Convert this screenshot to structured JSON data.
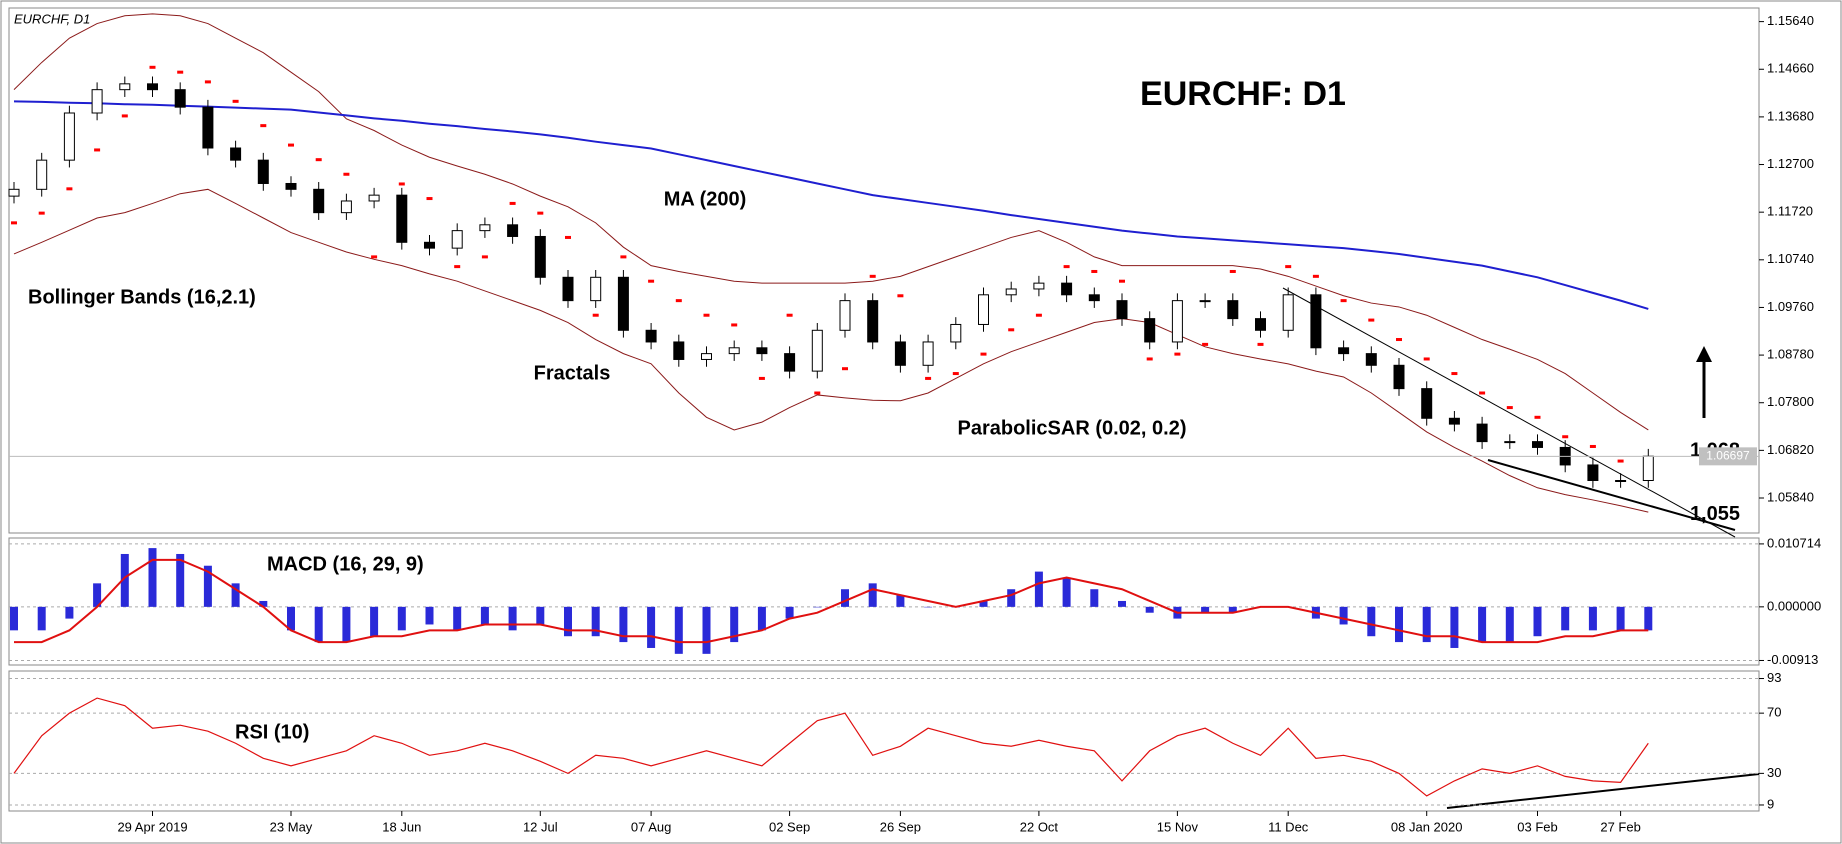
{
  "chart_data": [
    {
      "type": "candlestick",
      "header": "EURCHF, D1",
      "title": "EURCHF: D1",
      "open": [
        1.1205,
        1.1219,
        1.1279,
        1.1376,
        1.1424,
        1.1436,
        1.1424,
        1.1388,
        1.1304,
        1.1279,
        1.1231,
        1.1219,
        1.1171,
        1.1195,
        1.1207,
        1.111,
        1.1098,
        1.1134,
        1.1146,
        1.1122,
        1.1038,
        1.099,
        1.1038,
        1.0929,
        1.0905,
        1.0869,
        1.0881,
        1.0893,
        1.0881,
        1.0845,
        1.0929,
        1.099,
        1.0905,
        1.0857,
        1.0905,
        1.0941,
        1.1002,
        1.1014,
        1.1026,
        1.1002,
        1.099,
        1.0953,
        1.0905,
        1.099,
        1.099,
        1.0953,
        1.0929,
        1.1002,
        1.0893,
        1.0881,
        1.0857,
        1.0809,
        1.0748,
        1.0736,
        1.07,
        1.07,
        1.0688,
        1.0652,
        1.062,
        1.062
      ],
      "high": [
        1.1234,
        1.1294,
        1.1391,
        1.1439,
        1.1451,
        1.1451,
        1.1439,
        1.1403,
        1.1319,
        1.1294,
        1.1246,
        1.1234,
        1.121,
        1.1222,
        1.1222,
        1.1125,
        1.1149,
        1.1161,
        1.1161,
        1.1137,
        1.1053,
        1.1053,
        1.1053,
        1.0944,
        1.092,
        1.0896,
        1.0908,
        1.0908,
        1.0896,
        1.0944,
        1.1005,
        1.1005,
        1.092,
        1.092,
        1.0956,
        1.1017,
        1.1029,
        1.1041,
        1.1041,
        1.1017,
        1.1005,
        1.0968,
        1.1005,
        1.1005,
        1.1005,
        1.0968,
        1.1017,
        1.1017,
        1.0908,
        1.0896,
        1.0872,
        1.0824,
        1.0763,
        1.0751,
        1.0715,
        1.0715,
        1.0703,
        1.0667,
        1.0635,
        1.0685
      ],
      "low": [
        1.119,
        1.1204,
        1.1264,
        1.1361,
        1.1409,
        1.1409,
        1.1373,
        1.1289,
        1.1264,
        1.1216,
        1.1204,
        1.1156,
        1.1156,
        1.118,
        1.1095,
        1.1083,
        1.1083,
        1.1119,
        1.1107,
        1.1023,
        1.0975,
        1.0975,
        1.0914,
        1.089,
        1.0854,
        1.0854,
        1.0866,
        1.0866,
        1.083,
        1.083,
        1.0914,
        1.089,
        1.0842,
        1.0842,
        1.089,
        1.0926,
        1.0987,
        1.0999,
        1.0987,
        1.0975,
        1.0938,
        1.089,
        1.089,
        1.0975,
        1.0938,
        1.0914,
        1.0914,
        1.0878,
        1.0866,
        1.0842,
        1.0794,
        1.0733,
        1.0721,
        1.0685,
        1.0685,
        1.0673,
        1.0637,
        1.0605,
        1.0605,
        1.0605
      ],
      "close": [
        1.1219,
        1.1279,
        1.1376,
        1.1424,
        1.1436,
        1.1424,
        1.1388,
        1.1304,
        1.1279,
        1.1231,
        1.1219,
        1.1171,
        1.1195,
        1.1207,
        1.111,
        1.1098,
        1.1134,
        1.1146,
        1.1122,
        1.1038,
        1.099,
        1.1038,
        1.0929,
        1.0905,
        1.0869,
        1.0881,
        1.0893,
        1.0881,
        1.0845,
        1.0929,
        1.099,
        1.0905,
        1.0857,
        1.0905,
        1.0941,
        1.1002,
        1.1014,
        1.1026,
        1.1002,
        1.099,
        1.0953,
        1.0905,
        1.099,
        1.099,
        1.0953,
        1.0929,
        1.1002,
        1.0893,
        1.0881,
        1.0857,
        1.0809,
        1.0748,
        1.0736,
        1.07,
        1.07,
        1.0688,
        1.0652,
        1.062,
        1.062,
        1.067
      ],
      "series": [
        {
          "name": "MA (200)",
          "color": "#1f1fd0",
          "values": [
            1.14,
            1.1399,
            1.1397,
            1.1396,
            1.1394,
            1.1393,
            1.1391,
            1.1389,
            1.1387,
            1.1385,
            1.1383,
            1.1377,
            1.1371,
            1.1365,
            1.136,
            1.1354,
            1.1349,
            1.1343,
            1.1338,
            1.1332,
            1.1325,
            1.1317,
            1.131,
            1.1303,
            1.1291,
            1.1279,
            1.1267,
            1.1255,
            1.1243,
            1.1231,
            1.1219,
            1.1207,
            1.1199,
            1.1191,
            1.1183,
            1.1175,
            1.1166,
            1.1158,
            1.115,
            1.1142,
            1.1134,
            1.1128,
            1.1122,
            1.1118,
            1.1114,
            1.111,
            1.1106,
            1.1102,
            1.1098,
            1.1092,
            1.1086,
            1.1078,
            1.107,
            1.1062,
            1.105,
            1.1038,
            1.1022,
            1.1006,
            1.099,
            1.0973
          ]
        },
        {
          "name": "Bollinger Bands (16,2.1)",
          "color": "#8b1a1a",
          "upper": [
            1.1424,
            1.148,
            1.153,
            1.156,
            1.1576,
            1.158,
            1.1576,
            1.156,
            1.153,
            1.15,
            1.146,
            1.142,
            1.1364,
            1.134,
            1.131,
            1.1285,
            1.1267,
            1.125,
            1.123,
            1.1205,
            1.1183,
            1.115,
            1.11,
            1.1062,
            1.105,
            1.104,
            1.103,
            1.1026,
            1.1026,
            1.1026,
            1.1026,
            1.103,
            1.104,
            1.106,
            1.108,
            1.11,
            1.112,
            1.1134,
            1.111,
            1.108,
            1.1062,
            1.1062,
            1.1062,
            1.1062,
            1.1062,
            1.1055,
            1.104,
            1.102,
            1.1,
            1.0985,
            1.0977,
            1.096,
            1.0935,
            1.091,
            1.089,
            1.0869,
            1.084,
            1.08,
            1.076,
            1.0724
          ],
          "lower": [
            1.1086,
            1.111,
            1.1135,
            1.116,
            1.1171,
            1.119,
            1.121,
            1.1219,
            1.119,
            1.116,
            1.113,
            1.111,
            1.109,
            1.1075,
            1.1062,
            1.1045,
            1.103,
            1.101,
            1.099,
            1.097,
            1.0945,
            1.091,
            1.0881,
            1.086,
            1.08,
            1.075,
            1.0724,
            1.074,
            1.077,
            1.0796,
            1.079,
            1.0785,
            1.0784,
            1.08,
            1.083,
            1.086,
            1.0885,
            1.0905,
            1.0925,
            1.0945,
            1.0953,
            1.0945,
            1.092,
            1.0895,
            1.0881,
            1.087,
            1.086,
            1.0845,
            1.0833,
            1.08,
            1.076,
            1.072,
            1.0688,
            1.066,
            1.063,
            1.0605,
            1.0591,
            1.058,
            1.0568,
            1.0555
          ]
        },
        {
          "name": "ParabolicSAR (0.02, 0.2)",
          "color": "#ff0000",
          "values": [
            1.115,
            1.117,
            1.122,
            1.13,
            1.137,
            1.147,
            1.146,
            1.144,
            1.14,
            1.135,
            1.131,
            1.128,
            1.125,
            1.108,
            1.123,
            1.12,
            1.106,
            1.108,
            1.119,
            1.117,
            1.112,
            1.096,
            1.108,
            1.103,
            1.099,
            1.096,
            1.094,
            1.083,
            1.096,
            1.08,
            1.085,
            1.104,
            1.1,
            1.083,
            1.084,
            1.088,
            1.093,
            1.096,
            1.106,
            1.105,
            1.103,
            1.087,
            1.088,
            1.09,
            1.105,
            1.09,
            1.106,
            1.104,
            1.099,
            1.095,
            1.091,
            1.087,
            1.084,
            1.08,
            1.077,
            1.075,
            1.071,
            1.069,
            1.066,
            1.063
          ]
        }
      ],
      "annotations": [
        "Fractals"
      ],
      "levels": [
        {
          "value": 1.068,
          "label": "1,068"
        },
        {
          "value": 1.055,
          "label": "1,055"
        }
      ],
      "last": {
        "value": 1.06697,
        "label": "1.06697"
      },
      "ylim": [
        1.0512,
        1.1592
      ],
      "yticks": [
        {
          "value": 1.1564,
          "label": "1.15640"
        },
        {
          "value": 1.1466,
          "label": "1.14660"
        },
        {
          "value": 1.1368,
          "label": "1.13680"
        },
        {
          "value": 1.127,
          "label": "1.12700"
        },
        {
          "value": 1.1172,
          "label": "1.11720"
        },
        {
          "value": 1.1074,
          "label": "1.10740"
        },
        {
          "value": 1.0976,
          "label": "1.09760"
        },
        {
          "value": 1.0878,
          "label": "1.08780"
        },
        {
          "value": 1.078,
          "label": "1.07800"
        },
        {
          "value": 1.0682,
          "label": "1.06820"
        },
        {
          "value": 1.0584,
          "label": "1.05840"
        }
      ]
    },
    {
      "type": "macd",
      "title": "MACD (16, 29, 9)",
      "series": [
        {
          "color": "#2a2ad8",
          "values": [
            -0.004,
            -0.004,
            -0.002,
            0.004,
            0.009,
            0.01,
            0.009,
            0.007,
            0.004,
            0.001,
            -0.004,
            -0.006,
            -0.006,
            -0.005,
            -0.004,
            -0.003,
            -0.004,
            -0.003,
            -0.004,
            -0.003,
            -0.005,
            -0.005,
            -0.006,
            -0.007,
            -0.008,
            -0.008,
            -0.006,
            -0.004,
            -0.002,
            0.0,
            0.003,
            0.004,
            0.002,
            0.0,
            0.0,
            0.001,
            0.003,
            0.006,
            0.005,
            0.003,
            0.001,
            -0.001,
            -0.002,
            -0.001,
            -0.001,
            0.0,
            0.0,
            -0.002,
            -0.003,
            -0.005,
            -0.006,
            -0.006,
            -0.007,
            -0.006,
            -0.006,
            -0.005,
            -0.004,
            -0.004,
            -0.004,
            -0.004
          ]
        },
        {
          "color": "#e01010",
          "values": [
            -0.006,
            -0.006,
            -0.004,
            0.0,
            0.005,
            0.008,
            0.008,
            0.006,
            0.003,
            0.0,
            -0.004,
            -0.006,
            -0.006,
            -0.005,
            -0.005,
            -0.004,
            -0.004,
            -0.003,
            -0.003,
            -0.003,
            -0.004,
            -0.004,
            -0.005,
            -0.005,
            -0.006,
            -0.006,
            -0.005,
            -0.004,
            -0.002,
            -0.001,
            0.001,
            0.003,
            0.002,
            0.001,
            0.0,
            0.001,
            0.002,
            0.004,
            0.005,
            0.004,
            0.003,
            0.001,
            -0.001,
            -0.001,
            -0.001,
            0.0,
            0.0,
            -0.001,
            -0.002,
            -0.003,
            -0.004,
            -0.005,
            -0.005,
            -0.006,
            -0.006,
            -0.006,
            -0.005,
            -0.005,
            -0.004,
            -0.004
          ]
        }
      ],
      "ylim": [
        -0.0099,
        0.01172
      ],
      "yticks": [
        {
          "value": 0.010714,
          "label": "0.010714"
        },
        {
          "value": 0,
          "label": "0.000000"
        },
        {
          "value": -0.00913,
          "label": "-0.00913"
        }
      ],
      "grid": true
    },
    {
      "type": "line",
      "title": "RSI (10)",
      "color": "#e01010",
      "values": [
        30,
        55,
        70,
        80,
        75,
        60,
        62,
        58,
        50,
        40,
        35,
        40,
        45,
        55,
        50,
        42,
        45,
        50,
        45,
        38,
        30,
        42,
        40,
        35,
        40,
        45,
        40,
        35,
        50,
        65,
        70,
        42,
        48,
        60,
        55,
        50,
        48,
        52,
        48,
        45,
        25,
        45,
        55,
        60,
        50,
        42,
        60,
        40,
        42,
        38,
        30,
        15,
        25,
        33,
        30,
        35,
        28,
        25,
        24,
        50
      ],
      "categories": [
        null,
        null,
        null,
        null,
        null,
        "29 Apr 2019",
        null,
        null,
        null,
        null,
        "23 May",
        null,
        null,
        null,
        "18 Jun",
        null,
        null,
        null,
        null,
        "12 Jul",
        null,
        null,
        null,
        "07 Aug",
        null,
        null,
        null,
        null,
        "02 Sep",
        null,
        null,
        null,
        "26 Sep",
        null,
        null,
        null,
        null,
        "22 Oct",
        null,
        null,
        null,
        null,
        "15 Nov",
        null,
        null,
        null,
        "11 Dec",
        null,
        null,
        null,
        null,
        "08 Jan 2020",
        null,
        null,
        null,
        "03 Feb",
        null,
        null,
        "27 Feb",
        null
      ],
      "ylim": [
        5,
        98
      ],
      "yticks": [
        93,
        70,
        30,
        9
      ],
      "grid": true
    }
  ]
}
